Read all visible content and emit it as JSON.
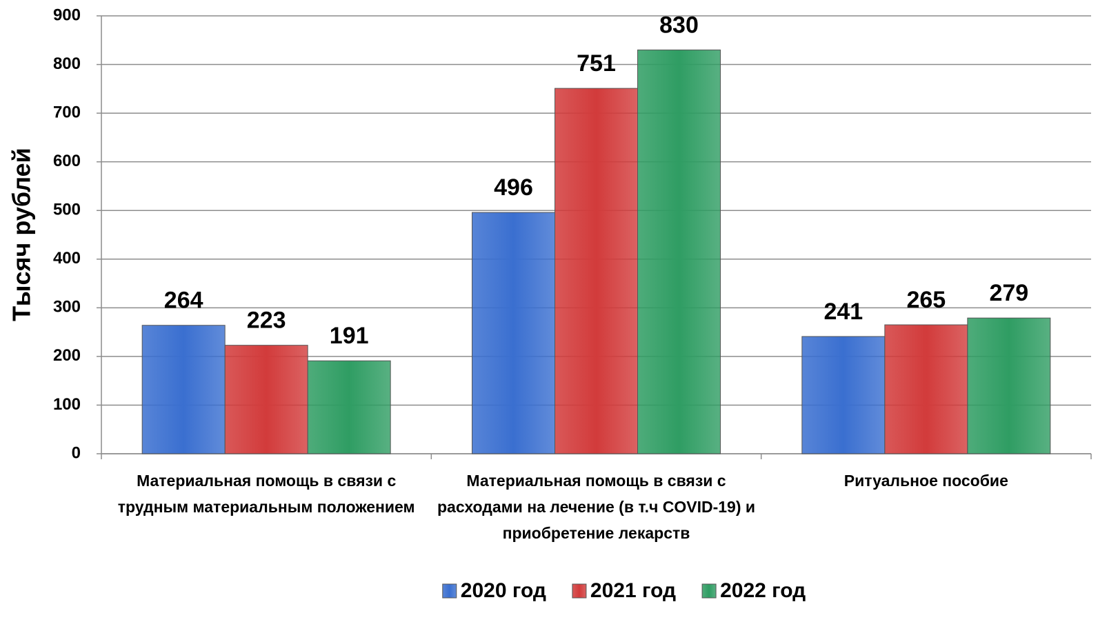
{
  "chart_data": {
    "type": "bar",
    "y_label": "Тысяч рублей",
    "categories": [
      "Материальная помощь в связи с трудным материальным положением",
      "Материальная помощь в связи с расходами на лечение (в т.ч COVID-19) и приобретение лекарств",
      "Ритуальное пособие"
    ],
    "series": [
      {
        "name": "2020 год",
        "color": "#3a6fd0",
        "values": [
          264,
          496,
          241
        ]
      },
      {
        "name": "2021 год",
        "color": "#d23b3b",
        "values": [
          223,
          751,
          265
        ]
      },
      {
        "name": "2022 год",
        "color": "#2f9d63",
        "values": [
          191,
          830,
          279
        ]
      }
    ],
    "ylim": [
      0,
      900
    ],
    "yticks": [
      0,
      100,
      200,
      300,
      400,
      500,
      600,
      700,
      800,
      900
    ],
    "grid": true,
    "legend": "bottom"
  }
}
